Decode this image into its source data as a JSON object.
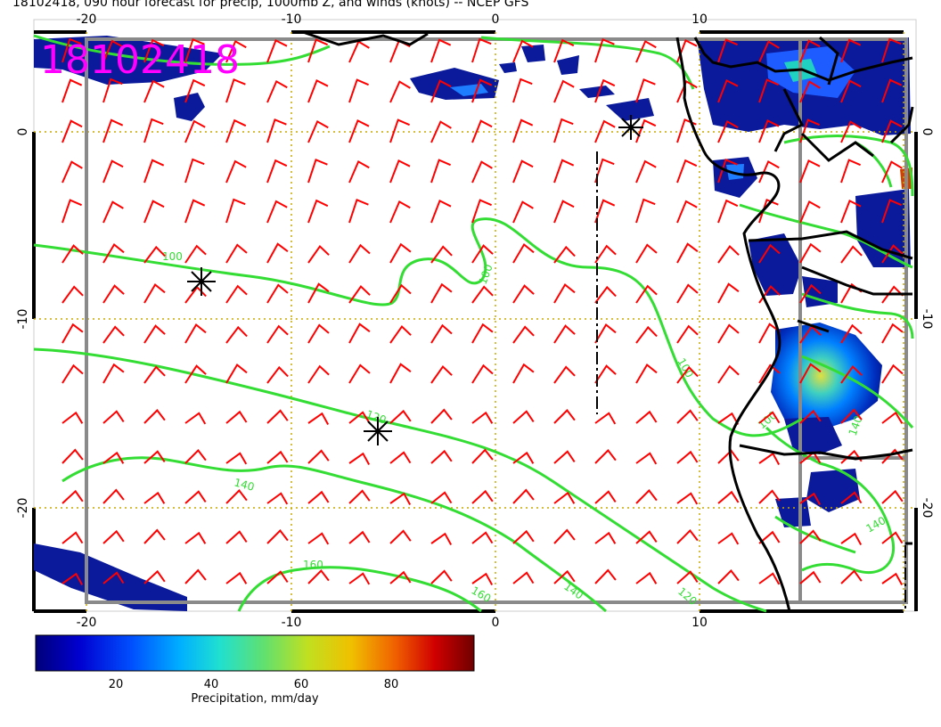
{
  "title": "18102418, 090 hour forecast for precip, 1000mb Z, and winds (knots) -- NCEP GFS",
  "stamp": "18102418",
  "axes": {
    "x_ticks": [
      "-20",
      "-10",
      "0",
      "10"
    ],
    "y_ticks": [
      "0",
      "-10",
      "-20"
    ]
  },
  "contour_labels": [
    "100",
    "100",
    "100",
    "120",
    "140",
    "160",
    "160",
    "140",
    "120",
    "100",
    "140",
    "140"
  ],
  "colorbar": {
    "ticks": [
      "20",
      "40",
      "60",
      "80"
    ],
    "label": "Precipitation, mm/day",
    "colors": [
      "#00007a",
      "#0000d0",
      "#0050ff",
      "#00b0ff",
      "#20e0d0",
      "#60e070",
      "#c0e020",
      "#f0c000",
      "#f06000",
      "#d00000",
      "#700000"
    ]
  },
  "colors": {
    "wind_barbs": "#ff0000",
    "contours": "#33dd33",
    "grid": "#c8a800",
    "stamp": "#ff00ff",
    "coast": "#000000"
  }
}
